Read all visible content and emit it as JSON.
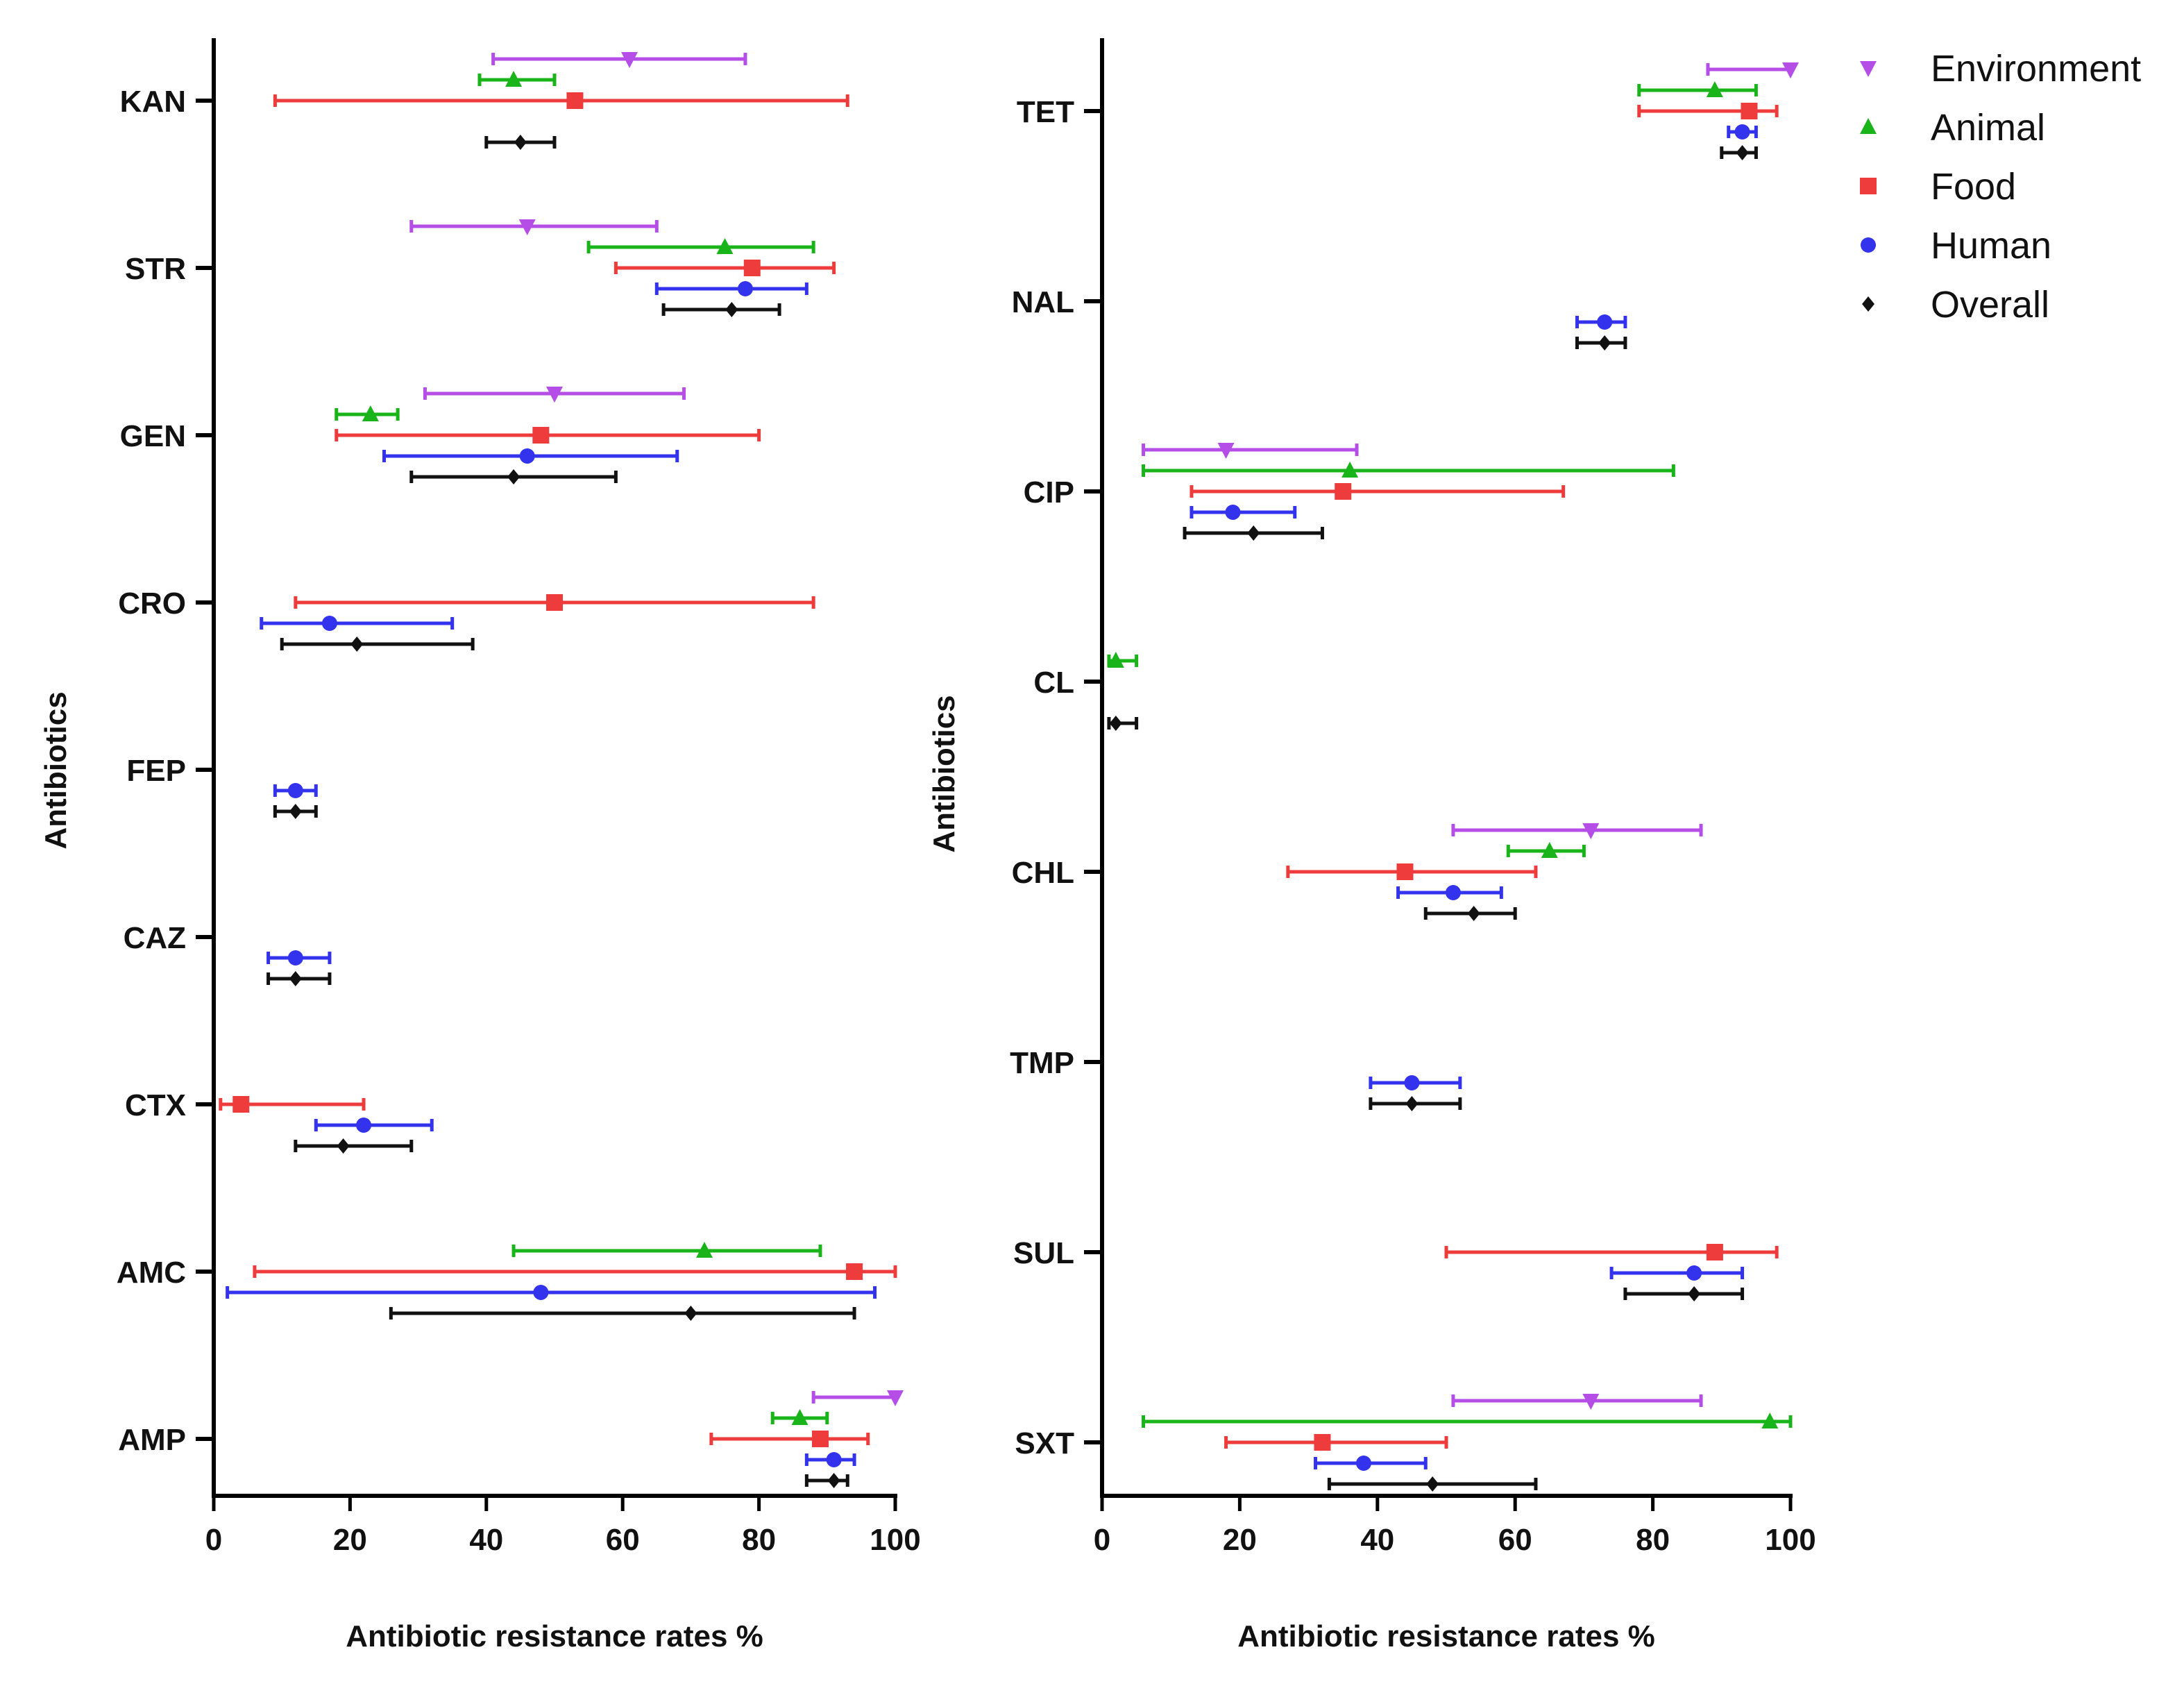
{
  "legend": [
    {
      "name": "Environment",
      "color": "#b44ee6",
      "marker": "triangle-down"
    },
    {
      "name": "Animal",
      "color": "#19b419",
      "marker": "triangle-up"
    },
    {
      "name": "Food",
      "color": "#ee3b3b",
      "marker": "square"
    },
    {
      "name": "Human",
      "color": "#3333ee",
      "marker": "circle"
    },
    {
      "name": "Overall",
      "color": "#111111",
      "marker": "diamond"
    }
  ],
  "chart_data": [
    {
      "type": "forest",
      "xlabel": "Antibiotic resistance rates %",
      "ylabel": "Antibiotics",
      "xlim": [
        0,
        100
      ],
      "xticks": [
        "0",
        "20",
        "40",
        "60",
        "80",
        "100"
      ],
      "legend_position": "none",
      "categories": [
        "KAN",
        "STR",
        "GEN",
        "CRO",
        "FEP",
        "CAZ",
        "CTX",
        "AMC",
        "AMP"
      ],
      "rows": [
        {
          "category": "KAN",
          "entries": [
            {
              "series": "Environment",
              "point": 61,
              "low": 41,
              "high": 78
            },
            {
              "series": "Animal",
              "point": 44,
              "low": 39,
              "high": 50
            },
            {
              "series": "Food",
              "point": 53,
              "low": 9,
              "high": 93
            },
            {
              "series": "Overall",
              "point": 45,
              "low": 40,
              "high": 50
            }
          ]
        },
        {
          "category": "STR",
          "entries": [
            {
              "series": "Environment",
              "point": 46,
              "low": 29,
              "high": 65
            },
            {
              "series": "Animal",
              "point": 75,
              "low": 55,
              "high": 88
            },
            {
              "series": "Food",
              "point": 79,
              "low": 59,
              "high": 91
            },
            {
              "series": "Human",
              "point": 78,
              "low": 65,
              "high": 87
            },
            {
              "series": "Overall",
              "point": 76,
              "low": 66,
              "high": 83
            }
          ]
        },
        {
          "category": "GEN",
          "entries": [
            {
              "series": "Environment",
              "point": 50,
              "low": 31,
              "high": 69
            },
            {
              "series": "Animal",
              "point": 23,
              "low": 18,
              "high": 27
            },
            {
              "series": "Food",
              "point": 48,
              "low": 18,
              "high": 80
            },
            {
              "series": "Human",
              "point": 46,
              "low": 25,
              "high": 68
            },
            {
              "series": "Overall",
              "point": 44,
              "low": 29,
              "high": 59
            }
          ]
        },
        {
          "category": "CRO",
          "entries": [
            {
              "series": "Food",
              "point": 50,
              "low": 12,
              "high": 88
            },
            {
              "series": "Human",
              "point": 17,
              "low": 7,
              "high": 35
            },
            {
              "series": "Overall",
              "point": 21,
              "low": 10,
              "high": 38
            }
          ]
        },
        {
          "category": "FEP",
          "entries": [
            {
              "series": "Human",
              "point": 12,
              "low": 9,
              "high": 15
            },
            {
              "series": "Overall",
              "point": 12,
              "low": 9,
              "high": 15
            }
          ]
        },
        {
          "category": "CAZ",
          "entries": [
            {
              "series": "Human",
              "point": 12,
              "low": 8,
              "high": 17
            },
            {
              "series": "Overall",
              "point": 12,
              "low": 8,
              "high": 17
            }
          ]
        },
        {
          "category": "CTX",
          "entries": [
            {
              "series": "Food",
              "point": 4,
              "low": 1,
              "high": 22
            },
            {
              "series": "Human",
              "point": 22,
              "low": 15,
              "high": 32
            },
            {
              "series": "Overall",
              "point": 19,
              "low": 12,
              "high": 29
            }
          ]
        },
        {
          "category": "AMC",
          "entries": [
            {
              "series": "Animal",
              "point": 72,
              "low": 44,
              "high": 89
            },
            {
              "series": "Food",
              "point": 94,
              "low": 6,
              "high": 100
            },
            {
              "series": "Human",
              "point": 48,
              "low": 2,
              "high": 97
            },
            {
              "series": "Overall",
              "point": 70,
              "low": 26,
              "high": 94
            }
          ]
        },
        {
          "category": "AMP",
          "entries": [
            {
              "series": "Environment",
              "point": 100,
              "low": 88,
              "high": 100
            },
            {
              "series": "Animal",
              "point": 86,
              "low": 82,
              "high": 90
            },
            {
              "series": "Food",
              "point": 89,
              "low": 73,
              "high": 96
            },
            {
              "series": "Human",
              "point": 91,
              "low": 87,
              "high": 94
            },
            {
              "series": "Overall",
              "point": 91,
              "low": 87,
              "high": 93
            }
          ]
        }
      ]
    },
    {
      "type": "forest",
      "xlabel": "Antibiotic resistance rates %",
      "ylabel": "Antibiotics",
      "xlim": [
        0,
        100
      ],
      "xticks": [
        "0",
        "20",
        "40",
        "60",
        "80",
        "100"
      ],
      "legend_position": "top-right",
      "categories": [
        "TET",
        "NAL",
        "CIP",
        "CL",
        "CHL",
        "TMP",
        "SUL",
        "SXT"
      ],
      "rows": [
        {
          "category": "TET",
          "entries": [
            {
              "series": "Environment",
              "point": 100,
              "low": 88,
              "high": 100
            },
            {
              "series": "Animal",
              "point": 89,
              "low": 78,
              "high": 95
            },
            {
              "series": "Food",
              "point": 94,
              "low": 78,
              "high": 98
            },
            {
              "series": "Human",
              "point": 93,
              "low": 91,
              "high": 95
            },
            {
              "series": "Overall",
              "point": 93,
              "low": 90,
              "high": 95
            }
          ]
        },
        {
          "category": "NAL",
          "entries": [
            {
              "series": "Human",
              "point": 73,
              "low": 69,
              "high": 76
            },
            {
              "series": "Overall",
              "point": 73,
              "low": 69,
              "high": 76
            }
          ]
        },
        {
          "category": "CIP",
          "entries": [
            {
              "series": "Environment",
              "point": 18,
              "low": 6,
              "high": 37
            },
            {
              "series": "Animal",
              "point": 36,
              "low": 6,
              "high": 83
            },
            {
              "series": "Food",
              "point": 35,
              "low": 13,
              "high": 67
            },
            {
              "series": "Human",
              "point": 19,
              "low": 13,
              "high": 28
            },
            {
              "series": "Overall",
              "point": 22,
              "low": 12,
              "high": 32
            }
          ]
        },
        {
          "category": "CL",
          "entries": [
            {
              "series": "Animal",
              "point": 2,
              "low": 1,
              "high": 5
            },
            {
              "series": "Overall",
              "point": 2,
              "low": 1,
              "high": 5
            }
          ]
        },
        {
          "category": "CHL",
          "entries": [
            {
              "series": "Environment",
              "point": 71,
              "low": 51,
              "high": 87
            },
            {
              "series": "Animal",
              "point": 65,
              "low": 59,
              "high": 70
            },
            {
              "series": "Food",
              "point": 44,
              "low": 27,
              "high": 63
            },
            {
              "series": "Human",
              "point": 51,
              "low": 43,
              "high": 58
            },
            {
              "series": "Overall",
              "point": 54,
              "low": 47,
              "high": 60
            }
          ]
        },
        {
          "category": "TMP",
          "entries": [
            {
              "series": "Human",
              "point": 45,
              "low": 39,
              "high": 52
            },
            {
              "series": "Overall",
              "point": 45,
              "low": 39,
              "high": 52
            }
          ]
        },
        {
          "category": "SUL",
          "entries": [
            {
              "series": "Food",
              "point": 89,
              "low": 50,
              "high": 98
            },
            {
              "series": "Human",
              "point": 86,
              "low": 74,
              "high": 93
            },
            {
              "series": "Overall",
              "point": 86,
              "low": 76,
              "high": 93
            }
          ]
        },
        {
          "category": "SXT",
          "entries": [
            {
              "series": "Environment",
              "point": 71,
              "low": 51,
              "high": 87
            },
            {
              "series": "Animal",
              "point": 97,
              "low": 6,
              "high": 100
            },
            {
              "series": "Food",
              "point": 32,
              "low": 18,
              "high": 50
            },
            {
              "series": "Human",
              "point": 38,
              "low": 31,
              "high": 47
            },
            {
              "series": "Overall",
              "point": 48,
              "low": 33,
              "high": 63
            }
          ]
        }
      ]
    }
  ]
}
